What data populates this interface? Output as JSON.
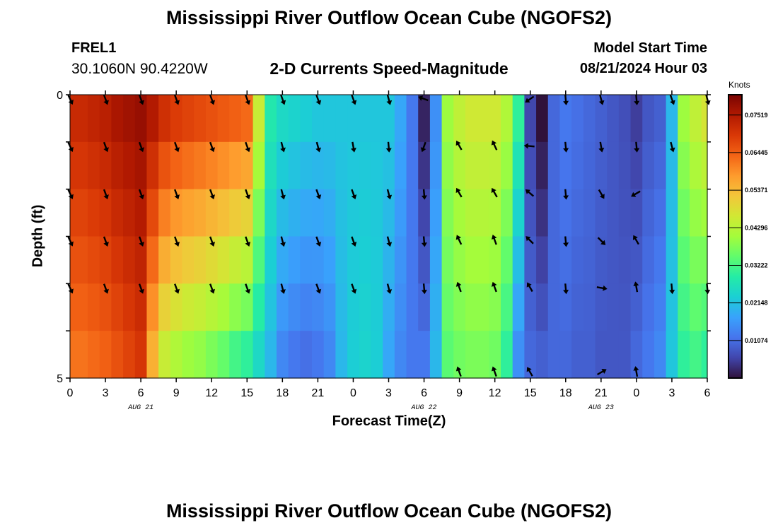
{
  "header": {
    "title": "Mississippi River Outflow Ocean Cube (NGOFS2)",
    "station_id": "FREL1",
    "station_coords": "30.1060N  90.4220W",
    "product": "2-D Currents Speed-Magnitude",
    "model_start_label": "Model Start Time",
    "model_start_value": "08/21/2024 Hour 03"
  },
  "footer": {
    "title": "Mississippi River Outflow Ocean Cube (NGOFS2)"
  },
  "colors": {
    "colormap": [
      "#30123b",
      "#4145ab",
      "#4675ed",
      "#39a2fc",
      "#1bcfd4",
      "#24eca6",
      "#61fc6c",
      "#a4fc3b",
      "#d1e834",
      "#f3c63a",
      "#fe9b2d",
      "#f36315",
      "#d93806",
      "#b11901",
      "#7a0403"
    ],
    "arrows": "#000000"
  },
  "chart_data": {
    "type": "heatmap",
    "title": "2-D Currents Speed-Magnitude",
    "xlabel": "Forecast Time(Z)",
    "ylabel": "Depth (ft)",
    "x_tick_labels": [
      "0",
      "3",
      "6",
      "9",
      "12",
      "15",
      "18",
      "21",
      "0",
      "3",
      "6",
      "9",
      "12",
      "15",
      "18",
      "21",
      "0",
      "3",
      "6"
    ],
    "x_hours": [
      0,
      3,
      6,
      9,
      12,
      15,
      18,
      21,
      24,
      27,
      30,
      33,
      36,
      39,
      42,
      45,
      48,
      51,
      54
    ],
    "date_labels": [
      {
        "hour": 6,
        "label": "AUG 21"
      },
      {
        "hour": 30,
        "label": "AUG 22"
      },
      {
        "hour": 45,
        "label": "AUG 23"
      }
    ],
    "y_tick_labels": [
      "0",
      "5"
    ],
    "ylim": [
      0,
      5
    ],
    "xlim": [
      0,
      54
    ],
    "colorbar": {
      "units": "Knots",
      "min": 0,
      "max": 0.081,
      "tick_labels": [
        "0.07519",
        "0.06445",
        "0.05371",
        "0.04296",
        "0.03222",
        "0.02148",
        "0.01074"
      ],
      "tick_values": [
        0.07519,
        0.06445,
        0.05371,
        0.04296,
        0.03222,
        0.02148,
        0.01074
      ]
    },
    "depth_levels": [
      0,
      1,
      2,
      3,
      4,
      5
    ],
    "speed_keys": {
      "hours": [
        0,
        1,
        2,
        3,
        4,
        5,
        6,
        7,
        8,
        9,
        10,
        11,
        12,
        13,
        14,
        15,
        16,
        17,
        18,
        19,
        20,
        21,
        22,
        23,
        24,
        25,
        26,
        27,
        28,
        29,
        30,
        31,
        32,
        33,
        34,
        35,
        36,
        37,
        38,
        39,
        40,
        41,
        42,
        43,
        44,
        45,
        46,
        47,
        48,
        49,
        50,
        51,
        52,
        53,
        54
      ],
      "surface": [
        0.072,
        0.072,
        0.073,
        0.074,
        0.076,
        0.077,
        0.078,
        0.075,
        0.071,
        0.069,
        0.068,
        0.067,
        0.066,
        0.065,
        0.064,
        0.063,
        0.045,
        0.028,
        0.025,
        0.024,
        0.023,
        0.022,
        0.022,
        0.022,
        0.022,
        0.022,
        0.022,
        0.022,
        0.018,
        0.012,
        0.002,
        0.015,
        0.04,
        0.044,
        0.046,
        0.046,
        0.046,
        0.042,
        0.03,
        0.006,
        0.0,
        0.01,
        0.012,
        0.011,
        0.01,
        0.009,
        0.008,
        0.007,
        0.005,
        0.008,
        0.009,
        0.02,
        0.04,
        0.044,
        0.047
      ],
      "bottom": [
        0.062,
        0.062,
        0.063,
        0.064,
        0.066,
        0.068,
        0.07,
        0.055,
        0.045,
        0.042,
        0.04,
        0.039,
        0.037,
        0.035,
        0.032,
        0.03,
        0.025,
        0.02,
        0.014,
        0.012,
        0.011,
        0.012,
        0.014,
        0.02,
        0.023,
        0.024,
        0.023,
        0.018,
        0.014,
        0.012,
        0.012,
        0.02,
        0.034,
        0.036,
        0.037,
        0.037,
        0.036,
        0.03,
        0.015,
        0.01,
        0.009,
        0.01,
        0.01,
        0.009,
        0.009,
        0.008,
        0.008,
        0.008,
        0.01,
        0.012,
        0.014,
        0.022,
        0.03,
        0.032,
        0.03
      ]
    },
    "arrows": [
      {
        "hour": 0,
        "depth": 0,
        "dir": 155
      },
      {
        "hour": 3,
        "depth": 0,
        "dir": 160
      },
      {
        "hour": 6,
        "depth": 0,
        "dir": 160
      },
      {
        "hour": 9,
        "depth": 0,
        "dir": 160
      },
      {
        "hour": 12,
        "depth": 0,
        "dir": 160
      },
      {
        "hour": 15,
        "depth": 0,
        "dir": 160
      },
      {
        "hour": 18,
        "depth": 0,
        "dir": 160
      },
      {
        "hour": 21,
        "depth": 0,
        "dir": 160
      },
      {
        "hour": 24,
        "depth": 0,
        "dir": 160
      },
      {
        "hour": 27,
        "depth": 0,
        "dir": 165
      },
      {
        "hour": 30,
        "depth": 0,
        "dir": 290
      },
      {
        "hour": 39,
        "depth": 0,
        "dir": 235
      },
      {
        "hour": 42,
        "depth": 0,
        "dir": 175
      },
      {
        "hour": 45,
        "depth": 0,
        "dir": 165
      },
      {
        "hour": 48,
        "depth": 0,
        "dir": 175
      },
      {
        "hour": 51,
        "depth": 0,
        "dir": 160
      },
      {
        "hour": 54,
        "depth": 0,
        "dir": 165
      },
      {
        "hour": 0,
        "depth": 1,
        "dir": 155
      },
      {
        "hour": 3,
        "depth": 1,
        "dir": 160
      },
      {
        "hour": 6,
        "depth": 1,
        "dir": 160
      },
      {
        "hour": 9,
        "depth": 1,
        "dir": 160
      },
      {
        "hour": 12,
        "depth": 1,
        "dir": 160
      },
      {
        "hour": 15,
        "depth": 1,
        "dir": 160
      },
      {
        "hour": 18,
        "depth": 1,
        "dir": 165
      },
      {
        "hour": 21,
        "depth": 1,
        "dir": 165
      },
      {
        "hour": 24,
        "depth": 1,
        "dir": 170
      },
      {
        "hour": 27,
        "depth": 1,
        "dir": 175
      },
      {
        "hour": 30,
        "depth": 1,
        "dir": 200
      },
      {
        "hour": 33,
        "depth": 1,
        "dir": 330
      },
      {
        "hour": 36,
        "depth": 1,
        "dir": 335
      },
      {
        "hour": 39,
        "depth": 1,
        "dir": 275
      },
      {
        "hour": 42,
        "depth": 1,
        "dir": 175
      },
      {
        "hour": 45,
        "depth": 1,
        "dir": 170
      },
      {
        "hour": 48,
        "depth": 1,
        "dir": 175
      },
      {
        "hour": 51,
        "depth": 1,
        "dir": 165
      },
      {
        "hour": 0,
        "depth": 2,
        "dir": 155
      },
      {
        "hour": 3,
        "depth": 2,
        "dir": 160
      },
      {
        "hour": 6,
        "depth": 2,
        "dir": 160
      },
      {
        "hour": 9,
        "depth": 2,
        "dir": 160
      },
      {
        "hour": 12,
        "depth": 2,
        "dir": 160
      },
      {
        "hour": 15,
        "depth": 2,
        "dir": 160
      },
      {
        "hour": 18,
        "depth": 2,
        "dir": 165
      },
      {
        "hour": 21,
        "depth": 2,
        "dir": 160
      },
      {
        "hour": 24,
        "depth": 2,
        "dir": 160
      },
      {
        "hour": 27,
        "depth": 2,
        "dir": 165
      },
      {
        "hour": 30,
        "depth": 2,
        "dir": 175
      },
      {
        "hour": 33,
        "depth": 2,
        "dir": 330
      },
      {
        "hour": 36,
        "depth": 2,
        "dir": 330
      },
      {
        "hour": 39,
        "depth": 2,
        "dir": 310
      },
      {
        "hour": 42,
        "depth": 2,
        "dir": 175
      },
      {
        "hour": 45,
        "depth": 2,
        "dir": 150
      },
      {
        "hour": 48,
        "depth": 2,
        "dir": 240
      },
      {
        "hour": 0,
        "depth": 3,
        "dir": 155
      },
      {
        "hour": 3,
        "depth": 3,
        "dir": 160
      },
      {
        "hour": 6,
        "depth": 3,
        "dir": 160
      },
      {
        "hour": 9,
        "depth": 3,
        "dir": 160
      },
      {
        "hour": 12,
        "depth": 3,
        "dir": 160
      },
      {
        "hour": 15,
        "depth": 3,
        "dir": 160
      },
      {
        "hour": 18,
        "depth": 3,
        "dir": 165
      },
      {
        "hour": 21,
        "depth": 3,
        "dir": 160
      },
      {
        "hour": 24,
        "depth": 3,
        "dir": 160
      },
      {
        "hour": 27,
        "depth": 3,
        "dir": 165
      },
      {
        "hour": 30,
        "depth": 3,
        "dir": 175
      },
      {
        "hour": 33,
        "depth": 3,
        "dir": 335
      },
      {
        "hour": 36,
        "depth": 3,
        "dir": 340
      },
      {
        "hour": 39,
        "depth": 3,
        "dir": 315
      },
      {
        "hour": 42,
        "depth": 3,
        "dir": 175
      },
      {
        "hour": 45,
        "depth": 3,
        "dir": 135
      },
      {
        "hour": 48,
        "depth": 3,
        "dir": 330
      },
      {
        "hour": 0,
        "depth": 4,
        "dir": 155
      },
      {
        "hour": 3,
        "depth": 4,
        "dir": 160
      },
      {
        "hour": 6,
        "depth": 4,
        "dir": 160
      },
      {
        "hour": 9,
        "depth": 4,
        "dir": 160
      },
      {
        "hour": 12,
        "depth": 4,
        "dir": 160
      },
      {
        "hour": 15,
        "depth": 4,
        "dir": 160
      },
      {
        "hour": 18,
        "depth": 4,
        "dir": 165
      },
      {
        "hour": 21,
        "depth": 4,
        "dir": 160
      },
      {
        "hour": 24,
        "depth": 4,
        "dir": 160
      },
      {
        "hour": 27,
        "depth": 4,
        "dir": 165
      },
      {
        "hour": 30,
        "depth": 4,
        "dir": 175
      },
      {
        "hour": 33,
        "depth": 4,
        "dir": 340
      },
      {
        "hour": 36,
        "depth": 4,
        "dir": 340
      },
      {
        "hour": 39,
        "depth": 4,
        "dir": 330
      },
      {
        "hour": 42,
        "depth": 4,
        "dir": 175
      },
      {
        "hour": 45,
        "depth": 4,
        "dir": 100
      },
      {
        "hour": 48,
        "depth": 4,
        "dir": 350
      },
      {
        "hour": 51,
        "depth": 4,
        "dir": 175
      },
      {
        "hour": 54,
        "depth": 4,
        "dir": 175
      },
      {
        "hour": 33,
        "depth": 5,
        "dir": 340
      },
      {
        "hour": 36,
        "depth": 5,
        "dir": 340
      },
      {
        "hour": 39,
        "depth": 5,
        "dir": 330
      },
      {
        "hour": 45,
        "depth": 5,
        "dir": 60
      },
      {
        "hour": 48,
        "depth": 5,
        "dir": 350
      }
    ]
  }
}
